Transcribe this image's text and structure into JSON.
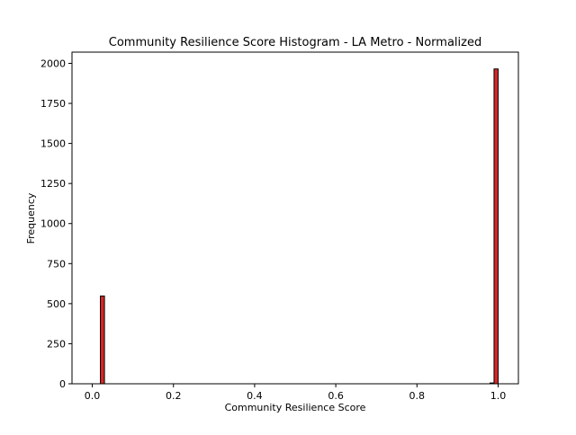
{
  "chart_data": {
    "type": "bar",
    "title": "Community Resilience Score Histogram - LA Metro - Normalized",
    "xlabel": "Community Resilience Score",
    "ylabel": "Frequency",
    "xlim": [
      -0.05,
      1.05
    ],
    "ylim": [
      0,
      2070
    ],
    "xticks": [
      0.0,
      0.2,
      0.4,
      0.6,
      0.8,
      1.0
    ],
    "xtick_labels": [
      "0.0",
      "0.2",
      "0.4",
      "0.6",
      "0.8",
      "1.0"
    ],
    "yticks": [
      0,
      250,
      500,
      750,
      1000,
      1250,
      1500,
      1750,
      2000
    ],
    "ytick_labels": [
      "0",
      "250",
      "500",
      "750",
      "1000",
      "1250",
      "1500",
      "1750",
      "2000"
    ],
    "bin_width": 0.01,
    "bins": [
      {
        "start": 0.02,
        "end": 0.03,
        "count": 548
      },
      {
        "start": 0.98,
        "end": 0.99,
        "count": 5
      },
      {
        "start": 0.99,
        "end": 1.0,
        "count": 1965
      }
    ],
    "grid": false,
    "colors": {
      "bar_fill": "#d62728",
      "bar_edge": "#000000",
      "axes": "#000000"
    }
  }
}
